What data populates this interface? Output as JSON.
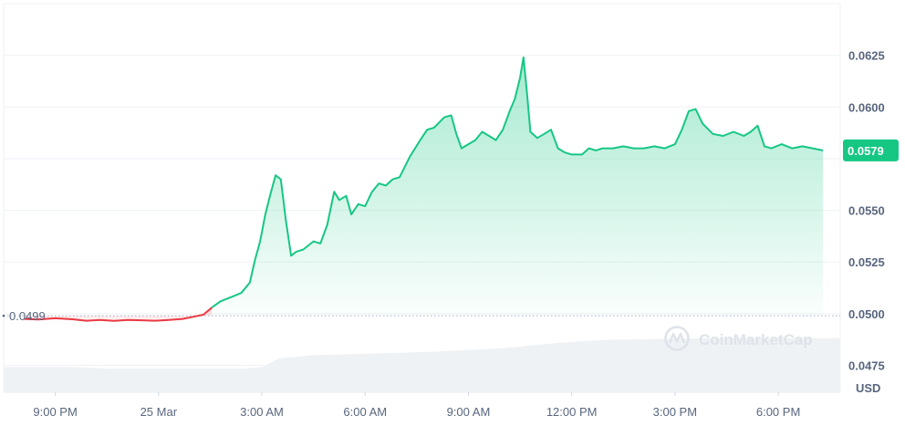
{
  "chart_data": {
    "type": "area",
    "currency": "USD",
    "y_ticks": [
      0.0475,
      0.05,
      0.0525,
      0.055,
      0.0575,
      0.06,
      0.0625
    ],
    "y_tick_labels": [
      "0.0475",
      "0.0500",
      "0.0525",
      "0.0550",
      "",
      "0.0600",
      "0.0625"
    ],
    "ylim": [
      0.0462,
      0.065
    ],
    "x_tick_labels": [
      "9:00 PM",
      "25 Mar",
      "3:00 AM",
      "6:00 AM",
      "9:00 AM",
      "12:00 PM",
      "3:00 PM",
      "6:00 PM"
    ],
    "x_range_hours": [
      -1.5,
      22.8
    ],
    "baseline_value": 0.0499,
    "baseline_label": "0.0499",
    "current_value": 0.0579,
    "current_label": "0.0579",
    "colors": {
      "up": "#16c784",
      "down": "#ea3943",
      "grid": "#eff2f5",
      "text": "#58667e",
      "volume": "#eff2f5"
    },
    "watermark": "CoinMarketCap",
    "series": [
      {
        "x": [
          -0.9,
          -0.5,
          0.0,
          0.5,
          0.9,
          1.3,
          1.7,
          2.1,
          2.5,
          2.9,
          3.3,
          3.7,
          4.0,
          4.3,
          4.55,
          4.8,
          5.1,
          5.4,
          5.65,
          5.8,
          5.95,
          6.1,
          6.25,
          6.4,
          6.55,
          6.7,
          6.85,
          7.0,
          7.2,
          7.5,
          7.7,
          7.9,
          8.1,
          8.25,
          8.45,
          8.6,
          8.8,
          9.0,
          9.2,
          9.4,
          9.6,
          9.8,
          10.0,
          10.3,
          10.6,
          10.8,
          11.0,
          11.3,
          11.5,
          11.65,
          11.8,
          12.0,
          12.2,
          12.4,
          12.6,
          12.8,
          13.0,
          13.2,
          13.35,
          13.5,
          13.6,
          13.7,
          13.8,
          14.0,
          14.2,
          14.4,
          14.6,
          14.8,
          15.0,
          15.3,
          15.5,
          15.7,
          15.9,
          16.2,
          16.5,
          16.8,
          17.1,
          17.4,
          17.7,
          18.0,
          18.2,
          18.4,
          18.6,
          18.8,
          19.1,
          19.4,
          19.7,
          20.0,
          20.2,
          20.4,
          20.6,
          20.8,
          21.1,
          21.4,
          21.7,
          22.0,
          22.3
        ],
        "values": [
          0.04975,
          0.04972,
          0.04978,
          0.04973,
          0.04966,
          0.0497,
          0.04965,
          0.0497,
          0.04968,
          0.04966,
          0.0497,
          0.04975,
          0.04985,
          0.04995,
          0.0503,
          0.0506,
          0.0508,
          0.051,
          0.0515,
          0.0526,
          0.0535,
          0.0548,
          0.0558,
          0.0567,
          0.0565,
          0.0545,
          0.0528,
          0.053,
          0.0531,
          0.0535,
          0.0534,
          0.0543,
          0.0559,
          0.0555,
          0.0557,
          0.0548,
          0.0553,
          0.0552,
          0.0559,
          0.0563,
          0.0562,
          0.0565,
          0.0566,
          0.0576,
          0.0584,
          0.0589,
          0.059,
          0.0595,
          0.0596,
          0.0587,
          0.058,
          0.0582,
          0.0584,
          0.0588,
          0.0586,
          0.0584,
          0.0589,
          0.0598,
          0.0604,
          0.0614,
          0.0624,
          0.0607,
          0.0588,
          0.0585,
          0.0587,
          0.0589,
          0.058,
          0.0578,
          0.0577,
          0.0577,
          0.058,
          0.0579,
          0.058,
          0.058,
          0.0581,
          0.058,
          0.058,
          0.0581,
          0.058,
          0.0582,
          0.0589,
          0.0598,
          0.0599,
          0.0592,
          0.0587,
          0.0586,
          0.0588,
          0.0586,
          0.0588,
          0.0591,
          0.0581,
          0.058,
          0.0582,
          0.058,
          0.0581,
          0.058,
          0.0579
        ]
      }
    ],
    "volume": {
      "x": [
        -1.5,
        0.5,
        1.5,
        3.0,
        4.5,
        5.5,
        6.0,
        6.5,
        7.5,
        9.5,
        11.0,
        13.0,
        14.5,
        16.0,
        19.0,
        21.0,
        22.8
      ],
      "values": [
        0.3,
        0.3,
        0.28,
        0.28,
        0.28,
        0.28,
        0.3,
        0.4,
        0.44,
        0.46,
        0.48,
        0.52,
        0.58,
        0.62,
        0.64,
        0.64,
        0.64
      ]
    }
  }
}
